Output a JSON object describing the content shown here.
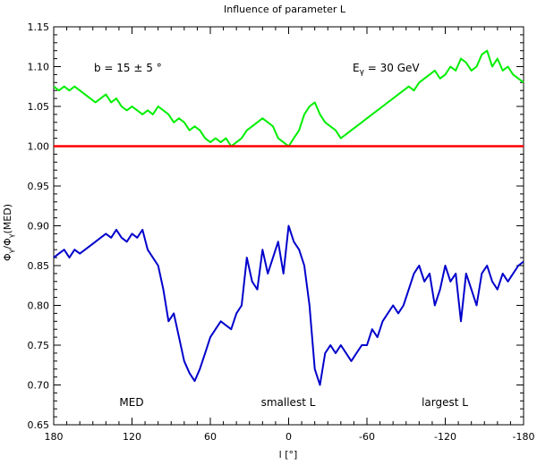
{
  "chart_data": {
    "type": "line",
    "title": "Influence of parameter L",
    "xlabel": "l [°]",
    "ylabel_parts": {
      "phi": "Φ",
      "sub": "γ",
      "slash": "/",
      "phi2": "Φ",
      "sub2": "γ",
      "tail": "(MED)"
    },
    "xlim": [
      180,
      -180
    ],
    "ylim": [
      0.65,
      1.15
    ],
    "x_ticks": [
      180,
      120,
      60,
      0,
      -60,
      -120,
      -180
    ],
    "x_tick_labels": [
      "180",
      "120",
      "60",
      "0",
      "-60",
      "-120",
      "-180"
    ],
    "y_ticks": [
      0.65,
      0.7,
      0.75,
      0.8,
      0.85,
      0.9,
      0.95,
      1.0,
      1.05,
      1.1,
      1.15
    ],
    "y_tick_labels": [
      "0.65",
      "0.70",
      "0.75",
      "0.80",
      "0.85",
      "0.90",
      "0.95",
      "1.00",
      "1.05",
      "1.10",
      "1.15"
    ],
    "annotations": {
      "b_range": "b = 15 ± 5 °",
      "energy_E": "E",
      "energy_sub": "γ",
      "energy_value": " = 30 GeV"
    },
    "legend_placement": "bottom, inside axes",
    "series": [
      {
        "name": "MED",
        "color": "#ff0000",
        "x": [
          180,
          -180
        ],
        "y": [
          1.0,
          1.0
        ]
      },
      {
        "name": "smallest L",
        "color": "#0000cc",
        "x": [
          180,
          176,
          172,
          168,
          164,
          160,
          156,
          152,
          148,
          144,
          140,
          136,
          132,
          128,
          124,
          120,
          116,
          112,
          108,
          104,
          100,
          96,
          92,
          88,
          84,
          80,
          76,
          72,
          68,
          64,
          60,
          56,
          52,
          48,
          44,
          40,
          36,
          32,
          28,
          24,
          20,
          16,
          12,
          8,
          4,
          0,
          -4,
          -8,
          -12,
          -16,
          -20,
          -24,
          -28,
          -32,
          -36,
          -40,
          -44,
          -48,
          -52,
          -56,
          -60,
          -64,
          -68,
          -72,
          -76,
          -80,
          -84,
          -88,
          -92,
          -96,
          -100,
          -104,
          -108,
          -112,
          -116,
          -120,
          -124,
          -128,
          -132,
          -136,
          -140,
          -144,
          -148,
          -152,
          -156,
          -160,
          -164,
          -168,
          -172,
          -176,
          -180
        ],
        "y": [
          0.86,
          0.865,
          0.87,
          0.86,
          0.87,
          0.865,
          0.87,
          0.875,
          0.88,
          0.885,
          0.89,
          0.885,
          0.895,
          0.885,
          0.88,
          0.89,
          0.885,
          0.895,
          0.87,
          0.86,
          0.85,
          0.82,
          0.78,
          0.79,
          0.76,
          0.73,
          0.715,
          0.705,
          0.72,
          0.74,
          0.76,
          0.77,
          0.78,
          0.775,
          0.77,
          0.79,
          0.8,
          0.86,
          0.83,
          0.82,
          0.87,
          0.84,
          0.86,
          0.88,
          0.84,
          0.9,
          0.88,
          0.87,
          0.85,
          0.8,
          0.72,
          0.7,
          0.74,
          0.75,
          0.74,
          0.75,
          0.74,
          0.73,
          0.74,
          0.75,
          0.75,
          0.77,
          0.76,
          0.78,
          0.79,
          0.8,
          0.79,
          0.8,
          0.82,
          0.84,
          0.85,
          0.83,
          0.84,
          0.8,
          0.82,
          0.85,
          0.83,
          0.84,
          0.78,
          0.84,
          0.82,
          0.8,
          0.84,
          0.85,
          0.83,
          0.82,
          0.84,
          0.83,
          0.84,
          0.85,
          0.855
        ]
      },
      {
        "name": "largest L",
        "color": "#00ee00",
        "x": [
          180,
          176,
          172,
          168,
          164,
          160,
          156,
          152,
          148,
          144,
          140,
          136,
          132,
          128,
          124,
          120,
          116,
          112,
          108,
          104,
          100,
          96,
          92,
          88,
          84,
          80,
          76,
          72,
          68,
          64,
          60,
          56,
          52,
          48,
          44,
          40,
          36,
          32,
          28,
          24,
          20,
          16,
          12,
          8,
          4,
          0,
          -4,
          -8,
          -12,
          -16,
          -20,
          -24,
          -28,
          -32,
          -36,
          -40,
          -44,
          -48,
          -52,
          -56,
          -60,
          -64,
          -68,
          -72,
          -76,
          -80,
          -84,
          -88,
          -92,
          -96,
          -100,
          -104,
          -108,
          -112,
          -116,
          -120,
          -124,
          -128,
          -132,
          -136,
          -140,
          -144,
          -148,
          -152,
          -156,
          -160,
          -164,
          -168,
          -172,
          -176,
          -180
        ],
        "y": [
          1.075,
          1.07,
          1.075,
          1.07,
          1.075,
          1.07,
          1.065,
          1.06,
          1.055,
          1.06,
          1.065,
          1.055,
          1.06,
          1.05,
          1.045,
          1.05,
          1.045,
          1.04,
          1.045,
          1.04,
          1.05,
          1.045,
          1.04,
          1.03,
          1.035,
          1.03,
          1.02,
          1.025,
          1.02,
          1.01,
          1.005,
          1.01,
          1.005,
          1.01,
          1.0,
          1.005,
          1.01,
          1.02,
          1.025,
          1.03,
          1.035,
          1.03,
          1.025,
          1.01,
          1.005,
          1.0,
          1.01,
          1.02,
          1.04,
          1.05,
          1.055,
          1.04,
          1.03,
          1.025,
          1.02,
          1.01,
          1.015,
          1.02,
          1.025,
          1.03,
          1.035,
          1.04,
          1.045,
          1.05,
          1.055,
          1.06,
          1.065,
          1.07,
          1.075,
          1.07,
          1.08,
          1.085,
          1.09,
          1.095,
          1.085,
          1.09,
          1.1,
          1.095,
          1.11,
          1.105,
          1.095,
          1.1,
          1.115,
          1.12,
          1.1,
          1.11,
          1.095,
          1.1,
          1.09,
          1.085,
          1.08
        ]
      }
    ]
  }
}
